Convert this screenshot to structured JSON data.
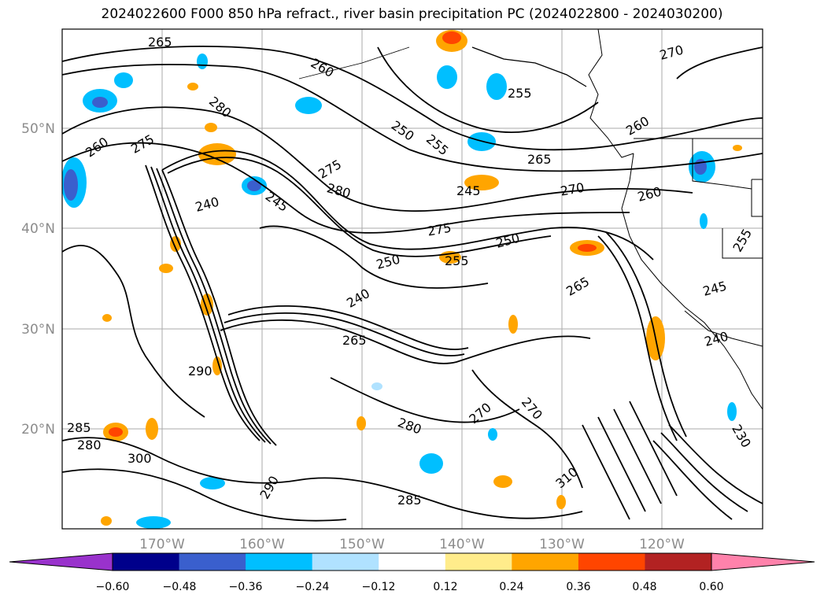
{
  "title": "2024022600 F000 850 hPa refract., river basin precipitation PC (2024022800 - 2024030200)",
  "lat_labels": [
    "50°N",
    "40°N",
    "30°N",
    "20°N"
  ],
  "lon_labels": [
    "170°W",
    "160°W",
    "150°W",
    "140°W",
    "130°W",
    "120°W"
  ],
  "contour_labels": [
    "265",
    "260",
    "280",
    "275",
    "260",
    "270",
    "260",
    "255",
    "250",
    "255",
    "275",
    "280",
    "265",
    "245",
    "240",
    "245",
    "270",
    "260",
    "275",
    "250",
    "250",
    "255",
    "240",
    "265",
    "265",
    "270",
    "270",
    "280",
    "290",
    "300",
    "285",
    "280",
    "285",
    "290",
    "310",
    "240",
    "245",
    "230",
    "255"
  ],
  "colorbar": {
    "colors": [
      "#9932cc",
      "#00008b",
      "#3a5fcd",
      "#00bfff",
      "#b0e2ff",
      "#ffffff",
      "#ffec8b",
      "#ffa500",
      "#ff4500",
      "#b22222",
      "#ff82ab"
    ],
    "ticks": [
      "−0.60",
      "−0.48",
      "−0.36",
      "−0.24",
      "−0.12",
      "0.12",
      "0.24",
      "0.36",
      "0.48",
      "0.60"
    ]
  }
}
